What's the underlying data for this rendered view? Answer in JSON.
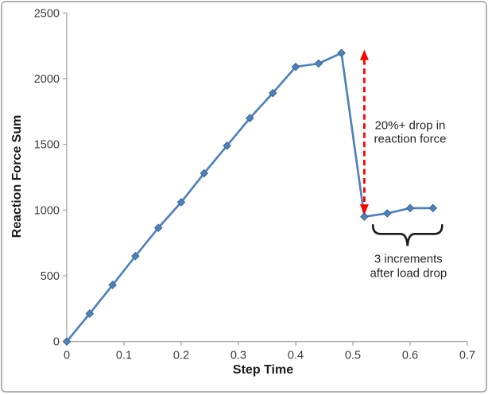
{
  "figure": {
    "background": "#FFFFFF",
    "border_color": "#B3B3B3"
  },
  "chart_data": {
    "type": "line",
    "title": "",
    "xlabel": "Step Time",
    "ylabel": "Reaction Force Sum",
    "xlim": [
      0,
      0.7
    ],
    "ylim": [
      0,
      2500
    ],
    "grid": false,
    "legend": "none",
    "axis_color": "#A6A6A6",
    "tick_label_color": "#3B3B3B",
    "axis_title_color": "#1A1A1A",
    "x_tick_values": [
      0,
      0.1,
      0.2,
      0.3,
      0.4,
      0.5,
      0.6,
      0.7
    ],
    "x_tick_labels": [
      "0",
      "0.1",
      "0.2",
      "0.3",
      "0.4",
      "0.5",
      "0.6",
      "0.7"
    ],
    "y_tick_values": [
      0,
      500,
      1000,
      1500,
      2000,
      2500
    ],
    "y_tick_labels": [
      "0",
      "500",
      "1000",
      "1500",
      "2000",
      "2500"
    ],
    "series": [
      {
        "name": "Reaction Force Sum",
        "type": "line",
        "marker": "diamond",
        "color": "#4F81BD",
        "marker_edge_color": "#3A6791",
        "points": [
          [
            0.0,
            0
          ],
          [
            0.04,
            212
          ],
          [
            0.08,
            430
          ],
          [
            0.12,
            650
          ],
          [
            0.16,
            865
          ],
          [
            0.2,
            1060
          ],
          [
            0.24,
            1280
          ],
          [
            0.28,
            1490
          ],
          [
            0.32,
            1700
          ],
          [
            0.36,
            1890
          ],
          [
            0.4,
            2090
          ],
          [
            0.44,
            2115
          ],
          [
            0.48,
            2195
          ],
          [
            0.52,
            950
          ],
          [
            0.56,
            975
          ],
          [
            0.6,
            1015
          ],
          [
            0.64,
            1015
          ]
        ]
      }
    ],
    "annotations": {
      "drop_arrow": {
        "shape": "vertical-double-headed-dashed-arrow",
        "color": "#FE0000",
        "x": 0.52,
        "y_from": 965,
        "y_to": 2220,
        "label": {
          "lines": [
            "20%+ drop in",
            "reaction force"
          ],
          "x": 0.6,
          "y": 1590,
          "color": "#262626"
        }
      },
      "increments_brace": {
        "shape": "horizontal-curly-brace-pointing-down",
        "color": "#1A1A1A",
        "x_from": 0.535,
        "x_to": 0.656,
        "y": 885,
        "label": {
          "lines": [
            "3 increments",
            "after load drop"
          ],
          "x": 0.597,
          "y": 570,
          "color": "#262626"
        }
      }
    }
  }
}
